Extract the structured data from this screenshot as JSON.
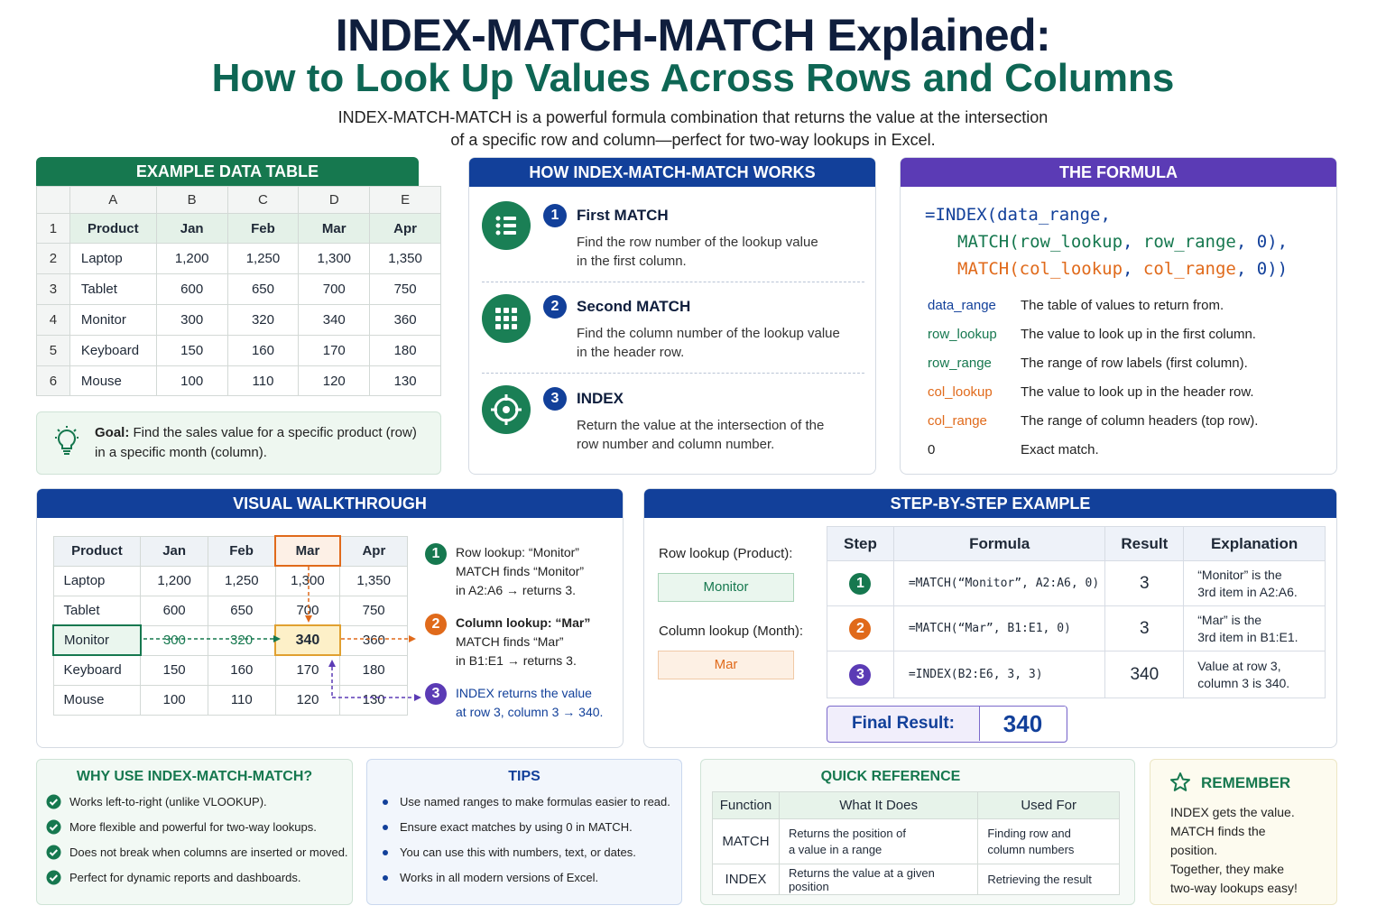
{
  "header": {
    "title": "INDEX-MATCH-MATCH Explained:",
    "subtitle": "How to Look Up Values Across Rows and Columns",
    "intro_line1": "INDEX-MATCH-MATCH is a powerful formula combination that returns the value at the intersection",
    "intro_line2": "of a specific row and column—perfect for two-way lookups in Excel."
  },
  "example_table": {
    "banner": "EXAMPLE DATA TABLE",
    "col_letters": [
      "A",
      "B",
      "C",
      "D",
      "E"
    ],
    "row_numbers": [
      "1",
      "2",
      "3",
      "4",
      "5",
      "6"
    ],
    "header": [
      "Product",
      "Jan",
      "Feb",
      "Mar",
      "Apr"
    ],
    "rows": [
      [
        "Laptop",
        "1,200",
        "1,250",
        "1,300",
        "1,350"
      ],
      [
        "Tablet",
        "600",
        "650",
        "700",
        "750"
      ],
      [
        "Monitor",
        "300",
        "320",
        "340",
        "360"
      ],
      [
        "Keyboard",
        "150",
        "160",
        "170",
        "180"
      ],
      [
        "Mouse",
        "100",
        "110",
        "120",
        "130"
      ]
    ],
    "goal_label": "Goal:",
    "goal_text_1": "Find the sales value for a specific product (row)",
    "goal_text_2": "in a specific month (column)."
  },
  "how_it_works": {
    "banner": "HOW INDEX-MATCH-MATCH WORKS",
    "steps": [
      {
        "num": "1",
        "title": "First MATCH",
        "desc1": "Find the row number of the lookup value",
        "desc2": "in the first column."
      },
      {
        "num": "2",
        "title": "Second MATCH",
        "desc1": "Find the column number of the lookup value",
        "desc2": "in the header row."
      },
      {
        "num": "3",
        "title": "INDEX",
        "desc1": "Return the value at the intersection of the",
        "desc2": "row number and column number."
      }
    ]
  },
  "formula": {
    "banner": "THE FORMULA",
    "line1_a": "=INDEX(",
    "line1_b": "data_range",
    "line1_c": ",",
    "line2_a": "MATCH(",
    "line2_b": "row_lookup",
    "line2_c": ", ",
    "line2_d": "row_range",
    "line2_e": ", 0),",
    "line3_a": "MATCH(",
    "line3_b": "col_lookup",
    "line3_c": ", ",
    "line3_d": "col_range",
    "line3_e": ", 0))",
    "defs": [
      {
        "term": "data_range",
        "desc": "The table of values to return from."
      },
      {
        "term": "row_lookup",
        "desc": "The value to look up in the first column."
      },
      {
        "term": "row_range",
        "desc": "The range of row labels (first column)."
      },
      {
        "term": "col_lookup",
        "desc": "The value to look up in the header row."
      },
      {
        "term": "col_range",
        "desc": "The range of column headers (top row)."
      },
      {
        "term": "0",
        "desc": "Exact match."
      }
    ]
  },
  "walkthrough": {
    "banner": "VISUAL WALKTHROUGH",
    "header": [
      "Product",
      "Jan",
      "Feb",
      "Mar",
      "Apr"
    ],
    "rows": [
      [
        "Laptop",
        "1,200",
        "1,250",
        "1,300",
        "1,350"
      ],
      [
        "Tablet",
        "600",
        "650",
        "700",
        "750"
      ],
      [
        "Monitor",
        "300",
        "320",
        "340",
        "360"
      ],
      [
        "Keyboard",
        "150",
        "160",
        "170",
        "180"
      ],
      [
        "Mouse",
        "100",
        "110",
        "120",
        "130"
      ]
    ],
    "notes": [
      {
        "num": "1",
        "l1": "Row lookup: “Monitor”",
        "l2": "MATCH finds “Monitor”",
        "l3": "in A2:A6 → returns 3."
      },
      {
        "num": "2",
        "l1": "Column lookup: “Mar”",
        "l2": "MATCH finds “Mar”",
        "l3": "in B1:E1 → returns 3."
      },
      {
        "num": "3",
        "l1": "INDEX returns the value",
        "l2": "at row 3, column 3 → 340.",
        "l3": ""
      }
    ]
  },
  "step_example": {
    "banner": "STEP-BY-STEP EXAMPLE",
    "row_lookup_label": "Row lookup (Product):",
    "row_lookup_value": "Monitor",
    "col_lookup_label": "Column lookup (Month):",
    "col_lookup_value": "Mar",
    "headers": [
      "Step",
      "Formula",
      "Result",
      "Explanation"
    ],
    "rows": [
      {
        "step": "1",
        "formula": "=MATCH(“Monitor”, A2:A6, 0)",
        "result": "3",
        "exp1": "“Monitor” is the",
        "exp2": "3rd item in A2:A6."
      },
      {
        "step": "2",
        "formula": "=MATCH(“Mar”, B1:E1, 0)",
        "result": "3",
        "exp1": "“Mar” is the",
        "exp2": "3rd item in B1:E1."
      },
      {
        "step": "3",
        "formula": "=INDEX(B2:E6, 3, 3)",
        "result": "340",
        "exp1": "Value at row 3,",
        "exp2": "column 3 is 340."
      }
    ],
    "final_label": "Final Result:",
    "final_value": "340"
  },
  "why": {
    "title": "WHY USE INDEX-MATCH-MATCH?",
    "items": [
      "Works left-to-right (unlike VLOOKUP).",
      "More flexible and powerful for two-way lookups.",
      "Does not break when columns are inserted or moved.",
      "Perfect for dynamic reports and dashboards."
    ]
  },
  "tips": {
    "title": "TIPS",
    "items": [
      "Use named ranges to make formulas easier to read.",
      "Ensure exact matches by using 0 in MATCH.",
      "You can use this with numbers, text, or dates.",
      "Works in all modern versions of Excel."
    ]
  },
  "quick_ref": {
    "title": "QUICK REFERENCE",
    "headers": [
      "Function",
      "What It Does",
      "Used For"
    ],
    "rows": [
      {
        "fn": "MATCH",
        "what1": "Returns the position of",
        "what2": "a value in a range",
        "used1": "Finding row and",
        "used2": "column numbers"
      },
      {
        "fn": "INDEX",
        "what1": "Returns the value at a given position",
        "what2": "",
        "used1": "Retrieving the result",
        "used2": ""
      }
    ]
  },
  "remember": {
    "title": "REMEMBER",
    "l1": "INDEX gets the value.",
    "l2": "MATCH finds the",
    "l3": "position.",
    "l4": "Together, they make",
    "l5": "two-way lookups easy!"
  },
  "colors": {
    "green": "#16784f",
    "blue": "#12409a",
    "purple": "#5b3bb5",
    "orange": "#e06a1b",
    "teal": "#0e6654"
  }
}
